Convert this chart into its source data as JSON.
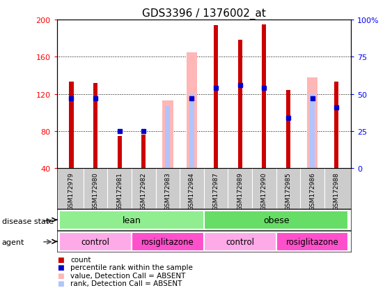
{
  "title": "GDS3396 / 1376002_at",
  "samples": [
    "GSM172979",
    "GSM172980",
    "GSM172981",
    "GSM172982",
    "GSM172983",
    "GSM172984",
    "GSM172987",
    "GSM172989",
    "GSM172990",
    "GSM172985",
    "GSM172986",
    "GSM172988"
  ],
  "count_values": [
    133,
    132,
    75,
    76,
    null,
    null,
    194,
    178,
    195,
    124,
    null,
    133
  ],
  "percentile_values": [
    47,
    47,
    25,
    25,
    null,
    47,
    54,
    56,
    54,
    34,
    47,
    41
  ],
  "absent_value_values": [
    null,
    null,
    null,
    null,
    113,
    165,
    null,
    null,
    null,
    null,
    138,
    null
  ],
  "absent_rank_values": [
    null,
    null,
    null,
    null,
    42,
    50,
    null,
    null,
    null,
    null,
    50,
    null
  ],
  "ylim": [
    40,
    200
  ],
  "yticks": [
    40,
    80,
    120,
    160,
    200
  ],
  "y2lim": [
    0,
    100
  ],
  "y2ticks": [
    0,
    25,
    50,
    75,
    100
  ],
  "y2labels": [
    "0",
    "25",
    "50",
    "75",
    "100%"
  ],
  "count_color": "#CC0000",
  "percentile_color": "#0000CC",
  "absent_value_color": "#FFB6B6",
  "absent_rank_color": "#B0C4FF",
  "tick_label_area_color": "#CCCCCC",
  "disease_state": [
    {
      "label": "lean",
      "span": [
        0,
        6
      ],
      "color": "#90EE90"
    },
    {
      "label": "obese",
      "span": [
        6,
        12
      ],
      "color": "#66DD66"
    }
  ],
  "agent": [
    {
      "label": "control",
      "span": [
        0,
        3
      ],
      "color": "#FFAAE8"
    },
    {
      "label": "rosiglitazone",
      "span": [
        3,
        6
      ],
      "color": "#FF50CC"
    },
    {
      "label": "control",
      "span": [
        6,
        9
      ],
      "color": "#FFAAE8"
    },
    {
      "label": "rosiglitazone",
      "span": [
        9,
        12
      ],
      "color": "#FF50CC"
    }
  ],
  "legend_items": [
    {
      "color": "#CC0000",
      "label": "count"
    },
    {
      "color": "#0000CC",
      "label": "percentile rank within the sample"
    },
    {
      "color": "#FFB6B6",
      "label": "value, Detection Call = ABSENT"
    },
    {
      "color": "#B0C4FF",
      "label": "rank, Detection Call = ABSENT"
    }
  ]
}
